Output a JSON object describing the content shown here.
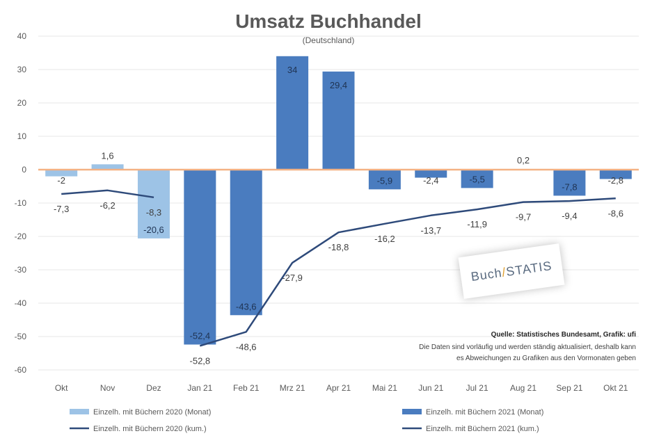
{
  "chart_data": {
    "type": "bar",
    "title": "Umsatz Buchhandel",
    "subtitle": "(Deutschland)",
    "ylim": [
      -60,
      40
    ],
    "yticks": [
      40,
      30,
      20,
      10,
      0,
      -10,
      -20,
      -30,
      -40,
      -50,
      -60
    ],
    "yticks_display": [
      "40",
      "30",
      "20",
      "10",
      "0",
      "-10",
      "-20",
      "-30",
      "-40",
      "-50",
      "-60"
    ],
    "categories": [
      "Okt",
      "Nov",
      "Dez",
      "Jan 21",
      "Feb 21",
      "Mrz 21",
      "Apr 21",
      "Mai 21",
      "Jun 21",
      "Jul 21",
      "Aug 21",
      "Sep 21",
      "Okt 21"
    ],
    "grid": true,
    "legend_position": "bottom",
    "series": [
      {
        "name": "Einzelh. mit Büchern 2020 (Monat)",
        "kind": "bar",
        "color": "#9dc3e6",
        "values": [
          -2,
          1.6,
          -20.6,
          null,
          null,
          null,
          null,
          null,
          null,
          null,
          null,
          null,
          null
        ],
        "labels": [
          "-2",
          "1,6",
          "-20,6",
          "",
          "",
          "",
          "",
          "",
          "",
          "",
          "",
          "",
          ""
        ]
      },
      {
        "name": "Einzelh. mit Büchern 2021 (Monat)",
        "kind": "bar",
        "color": "#4a7cbf",
        "values": [
          null,
          null,
          null,
          -52.4,
          -43.6,
          34,
          29.4,
          -5.9,
          -2.4,
          -5.5,
          0.2,
          -7.8,
          -2.8
        ],
        "labels": [
          "",
          "",
          "",
          "-52,4",
          "-43,6",
          "34",
          "29,4",
          "-5,9",
          "-2,4",
          "-5,5",
          "0,2",
          "-7,8",
          "-2,8"
        ]
      },
      {
        "name": "Einzelh. mit Büchern 2020 (kum.)",
        "kind": "line",
        "color": "#2e4a7a",
        "values": [
          -7.3,
          -6.2,
          -8.3,
          null,
          null,
          null,
          null,
          null,
          null,
          null,
          null,
          null,
          null
        ],
        "labels": [
          "-7,3",
          "-6,2",
          "-8,3",
          "",
          "",
          "",
          "",
          "",
          "",
          "",
          "",
          "",
          ""
        ]
      },
      {
        "name": "Einzelh. mit Büchern 2021 (kum.)",
        "kind": "line",
        "color": "#2e4a7a",
        "values": [
          null,
          null,
          null,
          -52.8,
          -48.6,
          -27.9,
          -18.8,
          -16.2,
          -13.7,
          -11.9,
          -9.7,
          -9.4,
          -8.6
        ],
        "labels": [
          "",
          "",
          "",
          "-52,8",
          "-48,6",
          "-27,9",
          "-18,8",
          "-16,2",
          "-13,7",
          "-11,9",
          "-9,7",
          "-9,4",
          "-8,6"
        ]
      }
    ],
    "source_title": "Quelle: Statistisches Bundesamt, Grafik: ufi",
    "source_lines": [
      "Die Daten sind vorläufig und werden ständig aktualisiert, deshalb kann",
      "es Abweichungen zu Grafiken aus den Vormonaten geben"
    ]
  },
  "logo": {
    "text_prefix": "Buch",
    "text_accent": "/",
    "text_suffix": "STATIS"
  },
  "colors": {
    "zero_line": "#f4b183",
    "grid": "#e7e7e7"
  }
}
